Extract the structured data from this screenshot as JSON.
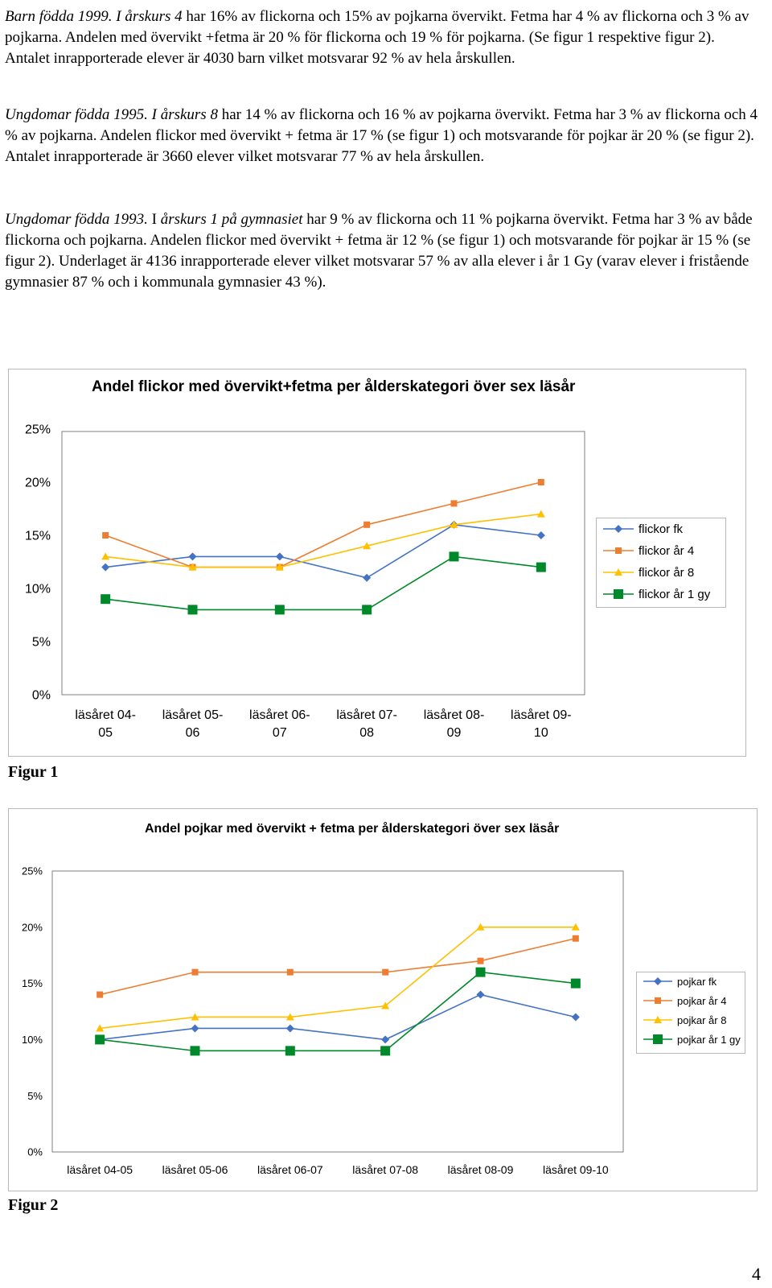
{
  "document": {
    "paragraphs": [
      {
        "runs": [
          {
            "text": "Barn födda 1999. I årskurs 4",
            "italic": true
          },
          {
            "text": "  har 16% av flickorna och 15% av pojkarna övervikt. Fetma har 4 % av flickorna och 3 % av pojkarna. Andelen med övervikt +fetma är 20 % för flickorna och 19 % för pojkarna. (Se figur 1 respektive figur 2). Antalet inrapporterade elever är 4030 barn vilket motsvarar 92 % av hela årskullen.",
            "italic": false
          }
        ]
      },
      {
        "runs": [
          {
            "text": "Ungdomar födda 1995. I årskurs 8",
            "italic": true
          },
          {
            "text": " har 14 % av flickorna och 16 % av pojkarna övervikt. Fetma har 3 % av flickorna och 4 % av pojkarna. Andelen flickor med övervikt + fetma är 17 % (se figur 1) och motsvarande för pojkar är 20 % (se figur 2). Antalet inrapporterade är 3660 elever vilket motsvarar 77 % av hela årskullen.",
            "italic": false
          }
        ]
      },
      {
        "runs": [
          {
            "text": "Ungdomar födda 1993.",
            "italic": true
          },
          {
            "text": " I ",
            "italic": false
          },
          {
            "text": "årskurs 1 på gymnasiet",
            "italic": true
          },
          {
            "text": " har 9 % av flickorna och 11 % pojkarna övervikt. Fetma har 3 % av både flickorna och pojkarna. Andelen flickor med övervikt + fetma är 12 % (se figur 1) och motsvarande för pojkar är 15 % (se figur 2). Underlaget är 4136 inrapporterade elever vilket motsvarar 57 % av alla elever i år 1 Gy (varav elever i fristående gymnasier 87 % och i kommunala gymnasier 43 %).",
            "italic": false
          }
        ]
      }
    ],
    "figure_labels": [
      "Figur 1",
      "Figur 2"
    ],
    "page_number": "4"
  },
  "chart_data": [
    {
      "type": "line",
      "title": "Andel flickor med övervikt+fetma per ålderskategori över sex läsår",
      "categories": [
        "läsåret 04-05",
        "läsåret 05-06",
        "läsåret 06-07",
        "läsåret 07-08",
        "läsåret 08-09",
        "läsåret 09-10"
      ],
      "category_lines": [
        [
          "läsåret 04-",
          "05"
        ],
        [
          "läsåret 05-",
          "06"
        ],
        [
          "läsåret 06-",
          "07"
        ],
        [
          "läsåret 07-",
          "08"
        ],
        [
          "läsåret 08-",
          "09"
        ],
        [
          "läsåret 09-",
          "10"
        ]
      ],
      "ylim": [
        0,
        0.25
      ],
      "yticks": [
        "0%",
        "5%",
        "10%",
        "15%",
        "20%",
        "25%"
      ],
      "grid": false,
      "legend_position": "right",
      "series": [
        {
          "name": "flickor fk",
          "values": [
            0.12,
            0.13,
            0.13,
            0.11,
            0.16,
            0.15
          ],
          "color": "#4472C4",
          "marker": "diamond"
        },
        {
          "name": "flickor år 4",
          "values": [
            0.15,
            0.12,
            0.12,
            0.16,
            0.18,
            0.2
          ],
          "color": "#ED7D31",
          "marker": "square"
        },
        {
          "name": "flickor år 8",
          "values": [
            0.13,
            0.12,
            0.12,
            0.14,
            0.16,
            0.17
          ],
          "color": "#FFC000",
          "marker": "triangle"
        },
        {
          "name": "flickor år 1 gy",
          "values": [
            0.09,
            0.08,
            0.08,
            0.08,
            0.13,
            0.12
          ],
          "color": "#00892A",
          "marker": "bigsquare"
        }
      ]
    },
    {
      "type": "line",
      "title": "Andel pojkar med övervikt + fetma per ålderskategori över sex läsår",
      "categories": [
        "läsåret 04-05",
        "läsåret 05-06",
        "läsåret 06-07",
        "läsåret 07-08",
        "läsåret 08-09",
        "läsåret 09-10"
      ],
      "category_lines": [
        [
          "läsåret 04-05"
        ],
        [
          "läsåret 05-06"
        ],
        [
          "läsåret 06-07"
        ],
        [
          "läsåret 07-08"
        ],
        [
          "läsåret 08-09"
        ],
        [
          "läsåret 09-10"
        ]
      ],
      "ylim": [
        0,
        0.25
      ],
      "yticks": [
        "0%",
        "5%",
        "10%",
        "15%",
        "20%",
        "25%"
      ],
      "grid": false,
      "legend_position": "right",
      "series": [
        {
          "name": "pojkar fk",
          "values": [
            0.1,
            0.11,
            0.11,
            0.1,
            0.14,
            0.12
          ],
          "color": "#4472C4",
          "marker": "diamond"
        },
        {
          "name": "pojkar år 4",
          "values": [
            0.14,
            0.16,
            0.16,
            0.16,
            0.17,
            0.19
          ],
          "color": "#ED7D31",
          "marker": "square"
        },
        {
          "name": "pojkar år 8",
          "values": [
            0.11,
            0.12,
            0.12,
            0.13,
            0.2,
            0.2
          ],
          "color": "#FFC000",
          "marker": "triangle"
        },
        {
          "name": "pojkar år 1 gy",
          "values": [
            0.1,
            0.09,
            0.09,
            0.09,
            0.16,
            0.15
          ],
          "color": "#00892A",
          "marker": "bigsquare"
        }
      ]
    }
  ]
}
